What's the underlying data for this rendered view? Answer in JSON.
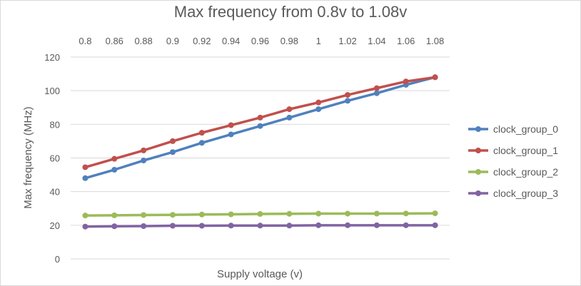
{
  "chart_data": {
    "type": "line",
    "title": "Max frequency from 0.8v to 1.08v",
    "xlabel": "Supply voltage (v)",
    "ylabel": "Max frequency (MHz)",
    "categories": [
      "0.8",
      "0.86",
      "0.88",
      "0.9",
      "0.92",
      "0.94",
      "0.96",
      "0.98",
      "1",
      "1.02",
      "1.04",
      "1.06",
      "1.08"
    ],
    "ylim": [
      0,
      120
    ],
    "yticks": [
      "0",
      "20",
      "40",
      "60",
      "80",
      "100",
      "120"
    ],
    "x_axis_position": "top",
    "grid": true,
    "legend_position": "right",
    "series": [
      {
        "name": "clock_group_0",
        "color": "#4F81BD",
        "values": [
          48,
          53,
          58.5,
          63.5,
          69,
          74,
          79,
          84,
          89,
          94,
          98.5,
          103.5,
          108
        ]
      },
      {
        "name": "clock_group_1",
        "color": "#C0504D",
        "values": [
          54.5,
          59.5,
          64.5,
          70,
          75,
          79.5,
          84,
          89,
          93,
          97.5,
          101.5,
          105.5,
          108
        ]
      },
      {
        "name": "clock_group_2",
        "color": "#9BBB59",
        "values": [
          25.8,
          25.9,
          26.1,
          26.2,
          26.4,
          26.5,
          26.7,
          26.8,
          26.9,
          26.9,
          26.9,
          27,
          27.1
        ]
      },
      {
        "name": "clock_group_3",
        "color": "#8064A2",
        "values": [
          19.2,
          19.4,
          19.5,
          19.7,
          19.7,
          19.8,
          19.8,
          19.8,
          20,
          20,
          20,
          20,
          20
        ]
      }
    ]
  }
}
